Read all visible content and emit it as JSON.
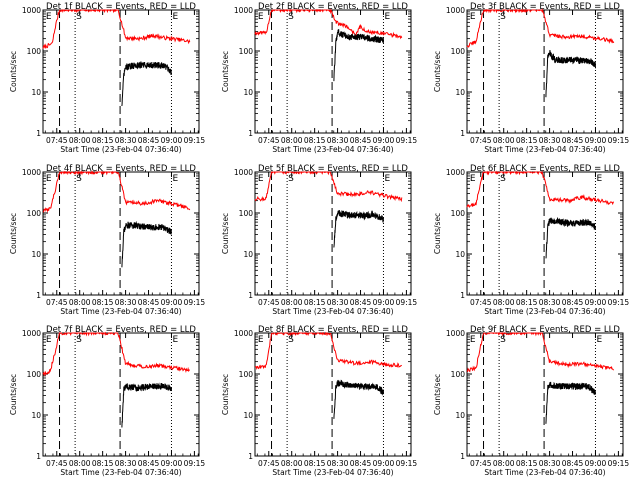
{
  "chart_data": [
    {
      "type": "line",
      "title": "Det 1f BLACK = Events, RED = LLD",
      "ylabel": "Counts/sec",
      "xlabel": "Start Time (23-Feb-04 07:36:40)",
      "yscale": "log",
      "ylim": [
        1,
        1000
      ],
      "x_ticks": [
        "07:45",
        "08:00",
        "08:15",
        "08:30",
        "08:45",
        "09:00",
        "09:15"
      ],
      "y_ticks": [
        "1",
        "10",
        "100",
        "1000"
      ],
      "markers": [
        "E",
        "S",
        "E"
      ],
      "series": [
        {
          "name": "LLD",
          "color": "#ff0000",
          "profile": [
            [
              7.6,
              120
            ],
            [
              7.7,
              150
            ],
            [
              7.74,
              450
            ],
            [
              7.78,
              1000
            ],
            [
              8.3,
              1000
            ],
            [
              8.42,
              1000
            ],
            [
              8.5,
              210
            ],
            [
              8.67,
              200
            ],
            [
              8.8,
              240
            ],
            [
              8.92,
              210
            ],
            [
              9.08,
              190
            ],
            [
              9.2,
              170
            ]
          ]
        },
        {
          "name": "Events",
          "color": "#000000",
          "profile": [
            [
              8.46,
              5
            ],
            [
              8.48,
              25
            ],
            [
              8.5,
              40
            ],
            [
              8.62,
              45
            ],
            [
              8.75,
              45
            ],
            [
              8.86,
              45
            ],
            [
              8.95,
              40
            ],
            [
              9.0,
              30
            ]
          ]
        }
      ]
    },
    {
      "type": "line",
      "title": "Det 2f BLACK = Events, RED = LLD",
      "ylabel": "Counts/sec",
      "xlabel": "Start Time (23-Feb-04 07:36:40)",
      "yscale": "log",
      "ylim": [
        1,
        1000
      ],
      "x_ticks": [
        "07:45",
        "08:00",
        "08:15",
        "08:30",
        "08:45",
        "09:00",
        "09:15"
      ],
      "y_ticks": [
        "1",
        "10",
        "100",
        "1000"
      ],
      "markers": [
        "E",
        "S",
        "E"
      ],
      "series": [
        {
          "name": "LLD",
          "color": "#ff0000",
          "profile": [
            [
              7.6,
              270
            ],
            [
              7.72,
              270
            ],
            [
              7.78,
              1000
            ],
            [
              8.3,
              1000
            ],
            [
              8.42,
              1000
            ],
            [
              8.48,
              500
            ],
            [
              8.6,
              400
            ],
            [
              8.7,
              250
            ],
            [
              8.75,
              400
            ],
            [
              8.8,
              300
            ],
            [
              8.95,
              280
            ],
            [
              9.2,
              220
            ]
          ]
        },
        {
          "name": "Events",
          "color": "#000000",
          "profile": [
            [
              8.46,
              20
            ],
            [
              8.48,
              150
            ],
            [
              8.5,
              300
            ],
            [
              8.55,
              250
            ],
            [
              8.62,
              220
            ],
            [
              8.75,
              220
            ],
            [
              9.0,
              180
            ]
          ]
        }
      ]
    },
    {
      "type": "line",
      "title": "Det 3f BLACK = Events, RED = LLD",
      "ylabel": "Counts/sec",
      "xlabel": "Start Time (23-Feb-04 07:36:40)",
      "yscale": "log",
      "ylim": [
        1,
        1000
      ],
      "x_ticks": [
        "07:45",
        "08:00",
        "08:15",
        "08:30",
        "08:45",
        "09:00",
        "09:15"
      ],
      "y_ticks": [
        "1",
        "10",
        "100",
        "1000"
      ],
      "markers": [
        "E",
        "S",
        "E"
      ],
      "series": [
        {
          "name": "LLD",
          "color": "#ff0000",
          "profile": [
            [
              7.6,
              130
            ],
            [
              7.7,
              170
            ],
            [
              7.74,
              450
            ],
            [
              7.78,
              1000
            ],
            [
              8.3,
              1000
            ],
            [
              8.42,
              1000
            ],
            [
              8.5,
              250
            ],
            [
              8.65,
              220
            ],
            [
              8.85,
              230
            ],
            [
              9.05,
              200
            ],
            [
              9.2,
              170
            ]
          ]
        },
        {
          "name": "Events",
          "color": "#000000",
          "profile": [
            [
              8.46,
              8
            ],
            [
              8.48,
              70
            ],
            [
              8.5,
              90
            ],
            [
              8.56,
              60
            ],
            [
              8.65,
              60
            ],
            [
              8.8,
              60
            ],
            [
              8.95,
              55
            ],
            [
              9.0,
              45
            ]
          ]
        }
      ]
    },
    {
      "type": "line",
      "title": "Det 4f BLACK = Events, RED = LLD",
      "ylabel": "Counts/sec",
      "xlabel": "Start Time (23-Feb-04 07:36:40)",
      "yscale": "log",
      "ylim": [
        1,
        1000
      ],
      "x_ticks": [
        "07:45",
        "08:00",
        "08:15",
        "08:30",
        "08:45",
        "09:00",
        "09:15"
      ],
      "y_ticks": [
        "1",
        "10",
        "100",
        "1000"
      ],
      "markers": [
        "E",
        "S",
        "E"
      ],
      "series": [
        {
          "name": "LLD",
          "color": "#ff0000",
          "profile": [
            [
              7.6,
              110
            ],
            [
              7.68,
              130
            ],
            [
              7.74,
              400
            ],
            [
              7.78,
              1000
            ],
            [
              8.3,
              1000
            ],
            [
              8.42,
              1000
            ],
            [
              8.5,
              180
            ],
            [
              8.7,
              170
            ],
            [
              8.85,
              200
            ],
            [
              9.05,
              160
            ],
            [
              9.2,
              130
            ]
          ]
        },
        {
          "name": "Events",
          "color": "#000000",
          "profile": [
            [
              8.46,
              5
            ],
            [
              8.48,
              35
            ],
            [
              8.5,
              50
            ],
            [
              8.6,
              50
            ],
            [
              8.75,
              45
            ],
            [
              8.9,
              45
            ],
            [
              9.0,
              35
            ]
          ]
        }
      ]
    },
    {
      "type": "line",
      "title": "Det 5f BLACK = Events, RED = LLD",
      "ylabel": "Counts/sec",
      "xlabel": "Start Time (23-Feb-04 07:36:40)",
      "yscale": "log",
      "ylim": [
        1,
        1000
      ],
      "x_ticks": [
        "07:45",
        "08:00",
        "08:15",
        "08:30",
        "08:45",
        "09:00",
        "09:15"
      ],
      "y_ticks": [
        "1",
        "10",
        "100",
        "1000"
      ],
      "markers": [
        "E",
        "S",
        "E"
      ],
      "series": [
        {
          "name": "LLD",
          "color": "#ff0000",
          "profile": [
            [
              7.6,
              220
            ],
            [
              7.72,
              220
            ],
            [
              7.78,
              1000
            ],
            [
              8.3,
              1000
            ],
            [
              8.42,
              1000
            ],
            [
              8.5,
              300
            ],
            [
              8.7,
              280
            ],
            [
              8.85,
              320
            ],
            [
              9.05,
              250
            ],
            [
              9.2,
              220
            ]
          ]
        },
        {
          "name": "Events",
          "color": "#000000",
          "profile": [
            [
              8.46,
              15
            ],
            [
              8.48,
              70
            ],
            [
              8.5,
              100
            ],
            [
              8.62,
              90
            ],
            [
              8.78,
              85
            ],
            [
              8.9,
              90
            ],
            [
              9.0,
              70
            ]
          ]
        }
      ]
    },
    {
      "type": "line",
      "title": "Det 6f BLACK = Events, RED = LLD",
      "ylabel": "Counts/sec",
      "xlabel": "Start Time (23-Feb-04 07:36:40)",
      "yscale": "log",
      "ylim": [
        1,
        1000
      ],
      "x_ticks": [
        "07:45",
        "08:00",
        "08:15",
        "08:30",
        "08:45",
        "09:00",
        "09:15"
      ],
      "y_ticks": [
        "1",
        "10",
        "100",
        "1000"
      ],
      "markers": [
        "E",
        "S",
        "E"
      ],
      "series": [
        {
          "name": "LLD",
          "color": "#ff0000",
          "profile": [
            [
              7.6,
              140
            ],
            [
              7.7,
              170
            ],
            [
              7.74,
              450
            ],
            [
              7.78,
              1000
            ],
            [
              8.3,
              1000
            ],
            [
              8.42,
              1000
            ],
            [
              8.5,
              220
            ],
            [
              8.7,
              200
            ],
            [
              8.85,
              240
            ],
            [
              9.05,
              200
            ],
            [
              9.2,
              170
            ]
          ]
        },
        {
          "name": "Events",
          "color": "#000000",
          "profile": [
            [
              8.46,
              8
            ],
            [
              8.48,
              45
            ],
            [
              8.5,
              65
            ],
            [
              8.62,
              60
            ],
            [
              8.78,
              55
            ],
            [
              8.92,
              60
            ],
            [
              9.0,
              45
            ]
          ]
        }
      ]
    },
    {
      "type": "line",
      "title": "Det 7f BLACK = Events, RED = LLD",
      "ylabel": "Counts/sec",
      "xlabel": "Start Time (23-Feb-04 07:36:40)",
      "yscale": "log",
      "ylim": [
        1,
        1000
      ],
      "x_ticks": [
        "07:45",
        "08:00",
        "08:15",
        "08:30",
        "08:45",
        "09:00",
        "09:15"
      ],
      "y_ticks": [
        "1",
        "10",
        "100",
        "1000"
      ],
      "markers": [
        "E",
        "S",
        "E"
      ],
      "series": [
        {
          "name": "LLD",
          "color": "#ff0000",
          "profile": [
            [
              7.6,
              100
            ],
            [
              7.68,
              120
            ],
            [
              7.74,
              400
            ],
            [
              7.78,
              1000
            ],
            [
              8.3,
              1000
            ],
            [
              8.42,
              1000
            ],
            [
              8.5,
              180
            ],
            [
              8.7,
              150
            ],
            [
              8.85,
              160
            ],
            [
              9.05,
              140
            ],
            [
              9.2,
              120
            ]
          ]
        },
        {
          "name": "Events",
          "color": "#000000",
          "profile": [
            [
              8.46,
              5
            ],
            [
              8.48,
              40
            ],
            [
              8.5,
              50
            ],
            [
              8.62,
              45
            ],
            [
              8.78,
              50
            ],
            [
              8.92,
              50
            ],
            [
              9.0,
              45
            ]
          ]
        }
      ]
    },
    {
      "type": "line",
      "title": "Det 8f BLACK = Events, RED = LLD",
      "ylabel": "Counts/sec",
      "xlabel": "Start Time (23-Feb-04 07:36:40)",
      "yscale": "log",
      "ylim": [
        1,
        1000
      ],
      "x_ticks": [
        "07:45",
        "08:00",
        "08:15",
        "08:30",
        "08:45",
        "09:00",
        "09:15"
      ],
      "y_ticks": [
        "1",
        "10",
        "100",
        "1000"
      ],
      "markers": [
        "E",
        "S",
        "E"
      ],
      "series": [
        {
          "name": "LLD",
          "color": "#ff0000",
          "profile": [
            [
              7.6,
              150
            ],
            [
              7.72,
              150
            ],
            [
              7.78,
              1000
            ],
            [
              8.3,
              1000
            ],
            [
              8.42,
              1000
            ],
            [
              8.5,
              220
            ],
            [
              8.7,
              180
            ],
            [
              8.85,
              200
            ],
            [
              9.05,
              170
            ],
            [
              9.2,
              160
            ]
          ]
        },
        {
          "name": "Events",
          "color": "#000000",
          "profile": [
            [
              8.46,
              8
            ],
            [
              8.48,
              45
            ],
            [
              8.5,
              60
            ],
            [
              8.62,
              55
            ],
            [
              8.78,
              50
            ],
            [
              8.92,
              50
            ],
            [
              9.0,
              35
            ]
          ]
        }
      ]
    },
    {
      "type": "line",
      "title": "Det 9f BLACK = Events, RED = LLD",
      "ylabel": "Counts/sec",
      "xlabel": "Start Time (23-Feb-04 07:36:40)",
      "yscale": "log",
      "ylim": [
        1,
        1000
      ],
      "x_ticks": [
        "07:45",
        "08:00",
        "08:15",
        "08:30",
        "08:45",
        "09:00",
        "09:15"
      ],
      "y_ticks": [
        "1",
        "10",
        "100",
        "1000"
      ],
      "markers": [
        "E",
        "S",
        "E"
      ],
      "series": [
        {
          "name": "LLD",
          "color": "#ff0000",
          "profile": [
            [
              7.6,
              120
            ],
            [
              7.7,
              140
            ],
            [
              7.74,
              400
            ],
            [
              7.78,
              1000
            ],
            [
              8.3,
              1000
            ],
            [
              8.42,
              1000
            ],
            [
              8.5,
              200
            ],
            [
              8.7,
              170
            ],
            [
              8.85,
              180
            ],
            [
              9.05,
              150
            ],
            [
              9.2,
              130
            ]
          ]
        },
        {
          "name": "Events",
          "color": "#000000",
          "profile": [
            [
              8.46,
              6
            ],
            [
              8.48,
              45
            ],
            [
              8.5,
              55
            ],
            [
              8.62,
              50
            ],
            [
              8.78,
              50
            ],
            [
              8.92,
              50
            ],
            [
              9.0,
              35
            ]
          ]
        }
      ]
    }
  ]
}
